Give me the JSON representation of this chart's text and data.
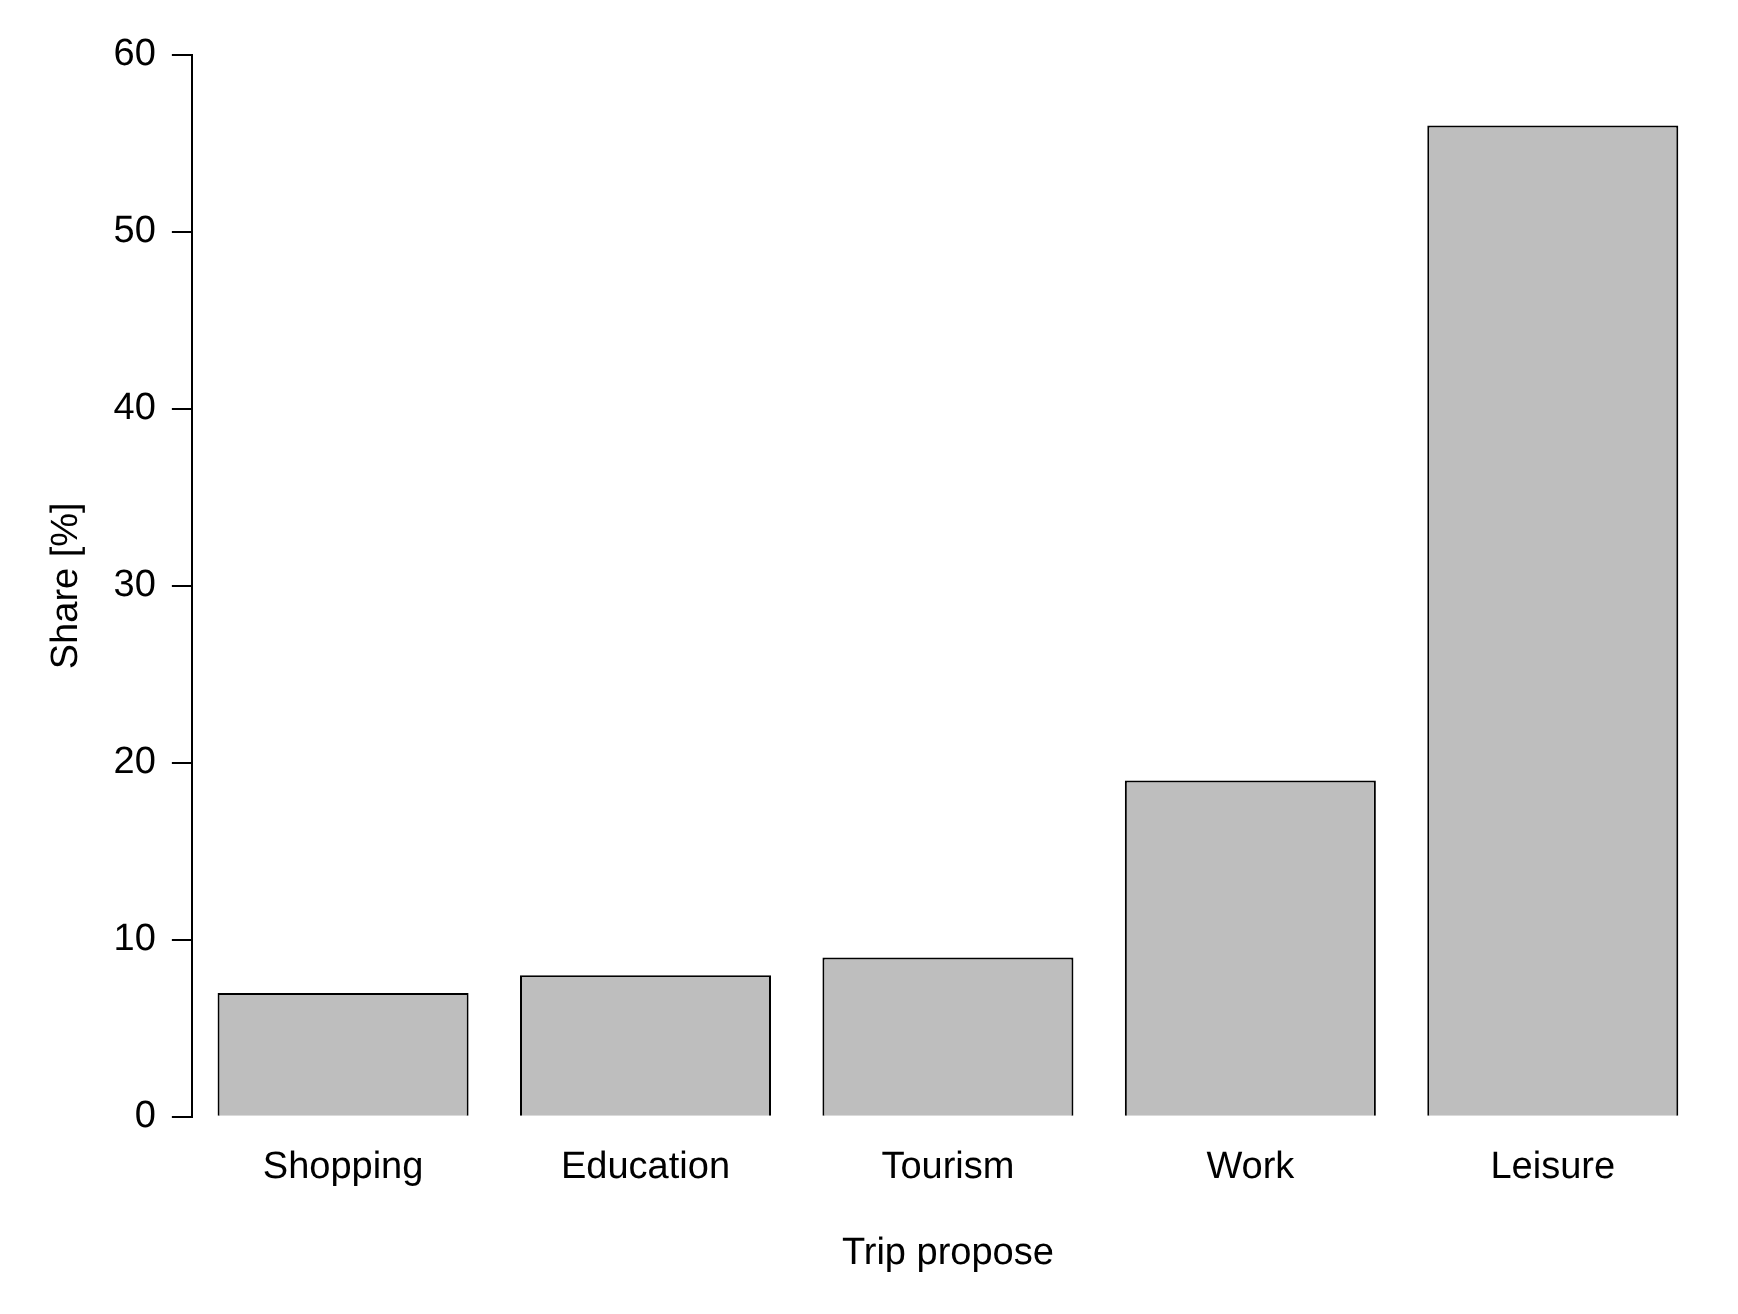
{
  "chart_data": {
    "type": "bar",
    "xlabel": "Trip propose",
    "ylabel": "Share [%]",
    "categories": [
      "Shopping",
      "Education",
      "Tourism",
      "Work",
      "Leisure"
    ],
    "values": [
      7,
      8,
      9,
      19,
      56
    ],
    "color": "#bebebe",
    "ylim": [
      0,
      60
    ],
    "yticks": [
      0,
      10,
      20,
      30,
      40,
      50,
      60
    ],
    "grid": false,
    "legend": false
  }
}
